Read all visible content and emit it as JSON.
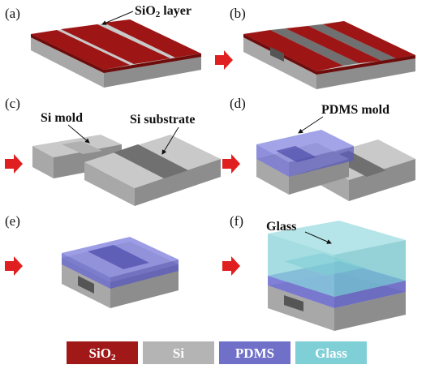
{
  "panels": {
    "a": "(a)",
    "b": "(b)",
    "c": "(c)",
    "d": "(d)",
    "e": "(e)",
    "f": "(f)"
  },
  "callouts": {
    "sio2_layer": "SiO",
    "sio2_layer_sub": "2",
    "sio2_layer_suffix": " layer",
    "si_mold": "Si mold",
    "si_substrate": "Si substrate",
    "pdms_mold": "PDMS mold",
    "glass": "Glass"
  },
  "legend": [
    {
      "key": "sio2",
      "label": "SiO",
      "sub": "2",
      "color": "#a01818"
    },
    {
      "key": "si",
      "label": "Si",
      "sub": "",
      "color": "#b4b4b4"
    },
    {
      "key": "pdms",
      "label": "PDMS",
      "sub": "",
      "color": "#7070c8"
    },
    {
      "key": "glass",
      "label": "Glass",
      "sub": "",
      "color": "#7fcfd6"
    }
  ],
  "colors": {
    "arrow": "#e02020",
    "si_top": "#c8c8c8",
    "si_front": "#a9a9a9",
    "si_side": "#8e8e8e",
    "si_etched": "#707070",
    "sio2": "#9e1515",
    "pdms": "#8484e0",
    "glass": "#8fd3d8"
  }
}
